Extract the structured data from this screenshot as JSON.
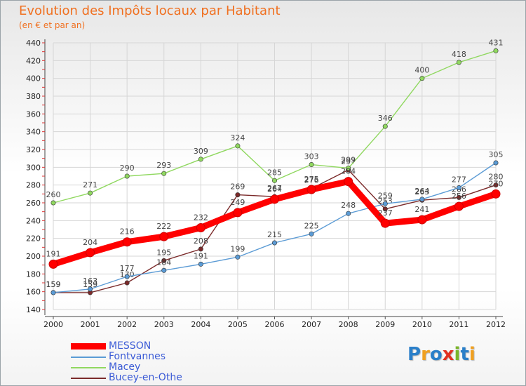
{
  "title": "Evolution des Impôts locaux par Habitant",
  "subtitle": "(en € et par an)",
  "logo": {
    "text": "Proxiti",
    "colors": [
      "#2a7fc9",
      "#f0a020",
      "#2a7fc9",
      "#e23020",
      "#7ab52a",
      "#2a7fc9",
      "#f0a020"
    ]
  },
  "chart_data": {
    "type": "line",
    "x": [
      "2000",
      "2001",
      "2002",
      "2003",
      "2004",
      "2005",
      "2006",
      "2007",
      "2008",
      "2009",
      "2010",
      "2011",
      "2012"
    ],
    "ylim": [
      140,
      440
    ],
    "yticks": [
      140,
      160,
      180,
      200,
      220,
      240,
      260,
      280,
      300,
      320,
      340,
      360,
      380,
      400,
      420,
      440
    ],
    "grid": true,
    "legend_position": "bottom-left",
    "series": [
      {
        "name": "MESSON",
        "color": "#ff0000",
        "values": [
          191,
          204,
          216,
          222,
          232,
          249,
          264,
          275,
          284,
          237,
          241,
          256,
          270
        ]
      },
      {
        "name": "Fontvannes",
        "color": "#5b9bd5",
        "values": [
          159,
          163,
          177,
          184,
          191,
          199,
          215,
          225,
          248,
          259,
          264,
          277,
          305
        ]
      },
      {
        "name": "Macey",
        "color": "#90d860",
        "values": [
          260,
          271,
          290,
          293,
          309,
          324,
          285,
          303,
          299,
          346,
          400,
          418,
          431
        ]
      },
      {
        "name": "Bucey-en-Othe",
        "color": "#7b2a2a",
        "values": [
          159,
          159,
          170,
          195,
          208,
          269,
          267,
          276,
          297,
          253,
          263,
          266,
          280
        ]
      }
    ]
  }
}
